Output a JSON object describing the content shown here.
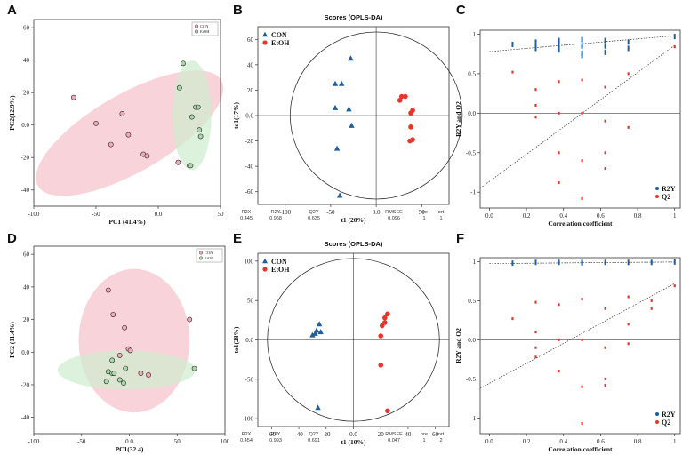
{
  "chart_data": [
    {
      "panel": "A",
      "type": "scatter",
      "xlabel": "PC1 (41.4%)",
      "ylabel": "PC2(12.9%)",
      "xlim": [
        -100,
        50
      ],
      "ylim": [
        -50,
        65
      ],
      "xticks": [
        -100,
        -50,
        0,
        50
      ],
      "yticks": [
        -40,
        -20,
        0,
        20,
        40,
        60
      ],
      "legend": [
        "CON",
        "EtOH"
      ],
      "legend_position": "top-right",
      "colors": {
        "CON": "#f2aab8",
        "EtOH": "#a8d8a8",
        "CON_ellipse": "#f7c0cb",
        "EtOH_ellipse": "#cfeccf"
      },
      "series": [
        {
          "name": "CON",
          "points": [
            [
              -68,
              17
            ],
            [
              -50,
              1
            ],
            [
              -29,
              7
            ],
            [
              -24,
              -6
            ],
            [
              -38,
              -12
            ],
            [
              -12,
              -18
            ],
            [
              -9,
              -19
            ],
            [
              16,
              -23
            ],
            [
              25,
              -25
            ]
          ]
        },
        {
          "name": "EtOH",
          "points": [
            [
              20,
              38
            ],
            [
              17,
              23
            ],
            [
              27,
              5
            ],
            [
              30,
              11
            ],
            [
              32,
              11
            ],
            [
              34,
              -7
            ],
            [
              33,
              -3
            ],
            [
              26,
              -25
            ]
          ]
        }
      ],
      "ellipses": [
        {
          "group": "CON",
          "cx": -23,
          "cy": -5,
          "rx": 85,
          "ry": 24,
          "angle_deg": -30
        },
        {
          "group": "EtOH",
          "cx": 27,
          "cy": 6,
          "rx": 44,
          "ry": 12,
          "angle_deg": -90
        }
      ]
    },
    {
      "panel": "B",
      "type": "scatter",
      "title": "Scores (OPLS-DA)",
      "xlabel": "t1 (20%)",
      "ylabel": "to1(17%)",
      "xlim": [
        -130,
        80
      ],
      "ylim": [
        -70,
        70
      ],
      "xticks": [
        -100,
        -50,
        0,
        50
      ],
      "yticks": [
        -60,
        -40,
        -20,
        0,
        20,
        40,
        60
      ],
      "legend": [
        "CON",
        "EtOH"
      ],
      "legend_position": "top-left",
      "series": [
        {
          "name": "CON",
          "marker": "triangle",
          "color": "#1f5f9e",
          "points": [
            [
              -28,
              45
            ],
            [
              -45,
              25
            ],
            [
              -38,
              25
            ],
            [
              -45,
              6
            ],
            [
              -30,
              5
            ],
            [
              -43,
              -26
            ],
            [
              -27,
              -8
            ],
            [
              -40,
              -63
            ]
          ]
        },
        {
          "name": "EtOH",
          "marker": "circle",
          "color": "#e8352b",
          "points": [
            [
              28,
              15
            ],
            [
              32,
              15
            ],
            [
              26,
              12
            ],
            [
              40,
              4
            ],
            [
              38,
              2
            ],
            [
              38,
              -9
            ],
            [
              40,
              -19
            ],
            [
              37,
              -20
            ]
          ]
        }
      ],
      "stats": {
        "headers": [
          "R2X",
          "R2Y",
          "Q2Y",
          "RMSEE",
          "pre",
          "ort"
        ],
        "values": [
          "0.445",
          "0.968",
          "0.635",
          "0.096",
          "1",
          "1"
        ]
      }
    },
    {
      "panel": "C",
      "type": "scatter",
      "xlabel": "Correlation coefficient",
      "ylabel": "R2Y and Q2",
      "xlim": [
        -0.05,
        1.03
      ],
      "ylim": [
        -1.2,
        1.05
      ],
      "xticks": [
        0.0,
        0.2,
        0.4,
        0.6,
        0.8,
        1.0
      ],
      "yticks": [
        -1.0,
        -0.5,
        0.0,
        0.5,
        1.0
      ],
      "legend": [
        "R2Y",
        "Q2"
      ],
      "legend_position": "bottom-right",
      "series": [
        {
          "name": "R2Y",
          "color": "#1f5f9e",
          "points": [
            [
              0.125,
              0.87
            ],
            [
              0.25,
              0.9
            ],
            [
              0.25,
              0.85
            ],
            [
              0.25,
              0.82
            ],
            [
              0.375,
              0.92
            ],
            [
              0.375,
              0.86
            ],
            [
              0.375,
              0.8
            ],
            [
              0.5,
              0.93
            ],
            [
              0.5,
              0.85
            ],
            [
              0.5,
              0.76
            ],
            [
              0.5,
              0.73
            ],
            [
              0.625,
              0.92
            ],
            [
              0.625,
              0.85
            ],
            [
              0.625,
              0.77
            ],
            [
              0.75,
              0.9
            ],
            [
              0.75,
              0.82
            ],
            [
              1.0,
              0.97
            ]
          ]
        },
        {
          "name": "Q2",
          "color": "#e8352b",
          "points": [
            [
              0.125,
              0.52
            ],
            [
              0.25,
              0.3
            ],
            [
              0.25,
              0.1
            ],
            [
              0.25,
              -0.05
            ],
            [
              0.375,
              0.4
            ],
            [
              0.375,
              0.0
            ],
            [
              0.375,
              -0.5
            ],
            [
              0.375,
              -0.88
            ],
            [
              0.5,
              0.42
            ],
            [
              0.5,
              0.0
            ],
            [
              0.5,
              -0.6
            ],
            [
              0.5,
              -1.08
            ],
            [
              0.625,
              0.33
            ],
            [
              0.625,
              -0.1
            ],
            [
              0.625,
              -0.5
            ],
            [
              0.625,
              -0.7
            ],
            [
              0.75,
              0.5
            ],
            [
              0.75,
              -0.18
            ],
            [
              1.0,
              0.84
            ]
          ]
        }
      ],
      "trendlines": [
        {
          "name": "R2Y",
          "from": [
            0.0,
            0.78
          ],
          "to": [
            1.0,
            0.98
          ]
        },
        {
          "name": "Q2",
          "from": [
            -0.05,
            -0.95
          ],
          "to": [
            1.0,
            0.86
          ]
        }
      ]
    },
    {
      "panel": "D",
      "type": "scatter",
      "xlabel": "PC1(32.4)",
      "ylabel": "PC2 (11.4%)",
      "xlim": [
        -100,
        100
      ],
      "ylim": [
        -50,
        65
      ],
      "xticks": [
        -100,
        -50,
        0,
        50,
        100
      ],
      "yticks": [
        -40,
        -20,
        0,
        20,
        40,
        60
      ],
      "legend": [
        "CON",
        "EtOH"
      ],
      "legend_position": "top-right",
      "colors": {
        "CON": "#f2aab8",
        "EtOH": "#a8d8a8",
        "CON_ellipse": "#f7c0cb",
        "EtOH_ellipse": "#cfeccf"
      },
      "series": [
        {
          "name": "CON",
          "points": [
            [
              -22,
              38
            ],
            [
              -17,
              23
            ],
            [
              -5,
              15
            ],
            [
              -1,
              2
            ],
            [
              1,
              1
            ],
            [
              -10,
              -2
            ],
            [
              63,
              20
            ],
            [
              20,
              -14
            ],
            [
              12,
              -13
            ]
          ]
        },
        {
          "name": "EtOH",
          "points": [
            [
              -18,
              -5
            ],
            [
              -22,
              -12
            ],
            [
              -18,
              -13
            ],
            [
              -16,
              -13
            ],
            [
              -4,
              -10
            ],
            [
              -10,
              -17
            ],
            [
              -24,
              -18
            ],
            [
              -6,
              -19
            ],
            [
              68,
              -10
            ]
          ]
        }
      ],
      "ellipses": [
        {
          "group": "CON",
          "cx": 5,
          "cy": 7,
          "rx": 58,
          "ry": 44,
          "angle_deg": 0
        },
        {
          "group": "EtOH",
          "cx": -3,
          "cy": -11,
          "rx": 72,
          "ry": 12,
          "angle_deg": 0
        }
      ]
    },
    {
      "panel": "E",
      "type": "scatter",
      "title": "Scores (OPLS-DA)",
      "xlabel": "t1 (10%)",
      "ylabel": "to1(28%)",
      "xlim": [
        -70,
        70
      ],
      "ylim": [
        -110,
        110
      ],
      "xticks": [
        -60,
        -40,
        -20,
        0,
        20,
        40,
        60
      ],
      "yticks": [
        -100,
        -50,
        0,
        50,
        100
      ],
      "legend": [
        "CON",
        "EtOH"
      ],
      "legend_position": "top-left",
      "series": [
        {
          "name": "CON",
          "marker": "triangle",
          "color": "#1f5f9e",
          "points": [
            [
              -25,
              20
            ],
            [
              -27,
              12
            ],
            [
              -24,
              10
            ],
            [
              -28,
              8
            ],
            [
              -30,
              6
            ],
            [
              -26,
              -86
            ]
          ]
        },
        {
          "name": "EtOH",
          "marker": "circle",
          "color": "#e8352b",
          "points": [
            [
              25,
              33
            ],
            [
              23,
              28
            ],
            [
              23,
              22
            ],
            [
              21,
              18
            ],
            [
              20,
              5
            ],
            [
              20,
              -32
            ],
            [
              25,
              -90
            ]
          ]
        }
      ],
      "stats": {
        "headers": [
          "R2X",
          "R2Y",
          "Q2Y",
          "RMSEE",
          "pre",
          "ort"
        ],
        "values": [
          "0.454",
          "0.993",
          "0.691",
          "0.047",
          "1",
          "2"
        ]
      }
    },
    {
      "panel": "F",
      "type": "scatter",
      "xlabel": "Correlation coefficient",
      "ylabel": "R2Y and Q2",
      "xlim": [
        -0.05,
        1.03
      ],
      "ylim": [
        -1.2,
        1.05
      ],
      "xticks": [
        0.0,
        0.2,
        0.4,
        0.6,
        0.8,
        1.0
      ],
      "yticks": [
        -1.0,
        -0.5,
        0.0,
        0.5,
        1.0
      ],
      "legend": [
        "R2Y",
        "Q2"
      ],
      "legend_position": "bottom-right",
      "series": [
        {
          "name": "R2Y",
          "color": "#1f5f9e",
          "points": [
            [
              0.125,
              0.98
            ],
            [
              0.25,
              0.99
            ],
            [
              0.375,
              0.99
            ],
            [
              0.5,
              0.99
            ],
            [
              0.5,
              0.985
            ],
            [
              0.625,
              0.99
            ],
            [
              0.75,
              0.99
            ],
            [
              0.875,
              0.99
            ],
            [
              1.0,
              0.995
            ]
          ]
        },
        {
          "name": "Q2",
          "color": "#e8352b",
          "points": [
            [
              0.125,
              0.27
            ],
            [
              0.25,
              0.48
            ],
            [
              0.25,
              0.1
            ],
            [
              0.25,
              -0.1
            ],
            [
              0.25,
              -0.22
            ],
            [
              0.375,
              0.45
            ],
            [
              0.375,
              0.0
            ],
            [
              0.375,
              -0.4
            ],
            [
              0.5,
              0.52
            ],
            [
              0.5,
              0.0
            ],
            [
              0.5,
              -0.6
            ],
            [
              0.5,
              -1.07
            ],
            [
              0.625,
              0.4
            ],
            [
              0.625,
              -0.1
            ],
            [
              0.625,
              -0.5
            ],
            [
              0.625,
              -0.58
            ],
            [
              0.75,
              0.55
            ],
            [
              0.75,
              0.2
            ],
            [
              0.75,
              -0.05
            ],
            [
              0.875,
              0.5
            ],
            [
              0.875,
              0.4
            ],
            [
              1.0,
              0.69
            ]
          ]
        }
      ],
      "trendlines": [
        {
          "name": "R2Y",
          "from": [
            0.0,
            0.975
          ],
          "to": [
            1.0,
            0.995
          ]
        },
        {
          "name": "Q2",
          "from": [
            -0.05,
            -0.62
          ],
          "to": [
            1.0,
            0.72
          ]
        }
      ]
    }
  ]
}
